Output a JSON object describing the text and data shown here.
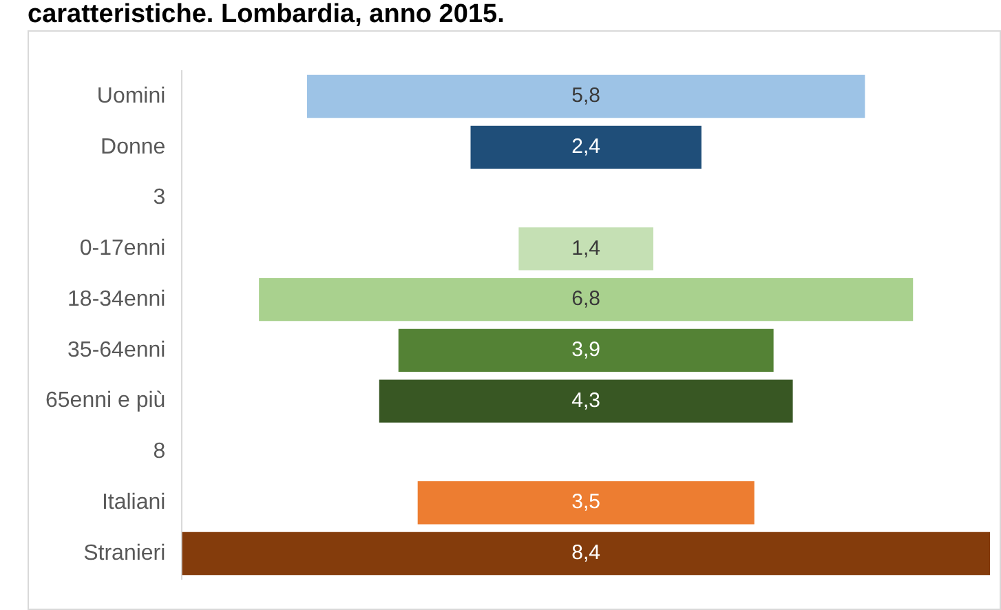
{
  "chart_data": {
    "type": "other",
    "title": "caratteristiche. Lombardia, anno 2015.",
    "categories": [
      "Uomini",
      "Donne",
      "3",
      "0-17enni",
      "18-34enni",
      "35-64enni",
      "65enni e più",
      "8",
      "Italiani",
      "Stranieri"
    ],
    "values": [
      5.8,
      2.4,
      null,
      1.4,
      6.8,
      3.9,
      4.3,
      null,
      3.5,
      8.4
    ],
    "colors": [
      "#9dc3e6",
      "#1f4e79",
      null,
      "#c5e0b4",
      "#a9d18e",
      "#548235",
      "#385723",
      null,
      "#ed7d31",
      "#843c0c"
    ],
    "value_labels": [
      "5,8",
      "2,4",
      null,
      "1,4",
      "6,8",
      "3,9",
      "4,3",
      null,
      "3,5",
      "8,4"
    ]
  }
}
